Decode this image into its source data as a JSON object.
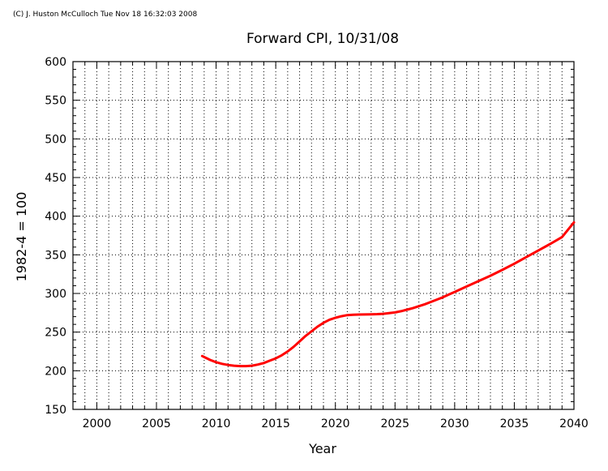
{
  "copyright": "(C) J. Huston McCulloch Tue Nov 18 16:32:03 2008",
  "chart_data": {
    "type": "line",
    "title": "Forward CPI, 10/31/08",
    "xlabel": "Year",
    "ylabel": "1982-4 = 100",
    "xlim": [
      1998,
      2040
    ],
    "ylim": [
      150,
      600
    ],
    "x_ticks": [
      2000,
      2005,
      2010,
      2015,
      2020,
      2025,
      2030,
      2035,
      2040
    ],
    "y_ticks": [
      150,
      200,
      250,
      300,
      350,
      400,
      450,
      500,
      550,
      600
    ],
    "grid": true,
    "colors": {
      "line": "#ff0000",
      "axes": "#000000",
      "grid": "#000000"
    },
    "series": [
      {
        "x": [
          2008.83,
          2009.5,
          2010,
          2010.5,
          2011,
          2011.5,
          2012,
          2012.5,
          2013,
          2013.5,
          2014,
          2014.5,
          2015,
          2015.5,
          2016,
          2016.5,
          2017,
          2017.5,
          2018,
          2018.5,
          2019,
          2019.5,
          2020,
          2020.5,
          2021,
          2021.5,
          2022,
          2022.5,
          2023,
          2023.5,
          2024,
          2024.5,
          2025,
          2025.5,
          2026,
          2026.5,
          2027,
          2027.5,
          2028,
          2028.5,
          2029,
          2029.5,
          2030,
          2031,
          2032,
          2033,
          2034,
          2035,
          2036,
          2037,
          2038,
          2039,
          2040
        ],
        "y": [
          219,
          214,
          211,
          209,
          207.5,
          206.5,
          206,
          206,
          206.5,
          208,
          210,
          213,
          216,
          220,
          225,
          231,
          238,
          245,
          251,
          257,
          262,
          266,
          268.5,
          270.5,
          272,
          272.5,
          272.7,
          272.8,
          273,
          273.3,
          273.7,
          274.5,
          275.5,
          277,
          279,
          281,
          283.5,
          286,
          289,
          292,
          295,
          298.5,
          302,
          309,
          316,
          323,
          330.5,
          338.5,
          347,
          355.5,
          364,
          373,
          392
        ]
      }
    ]
  }
}
